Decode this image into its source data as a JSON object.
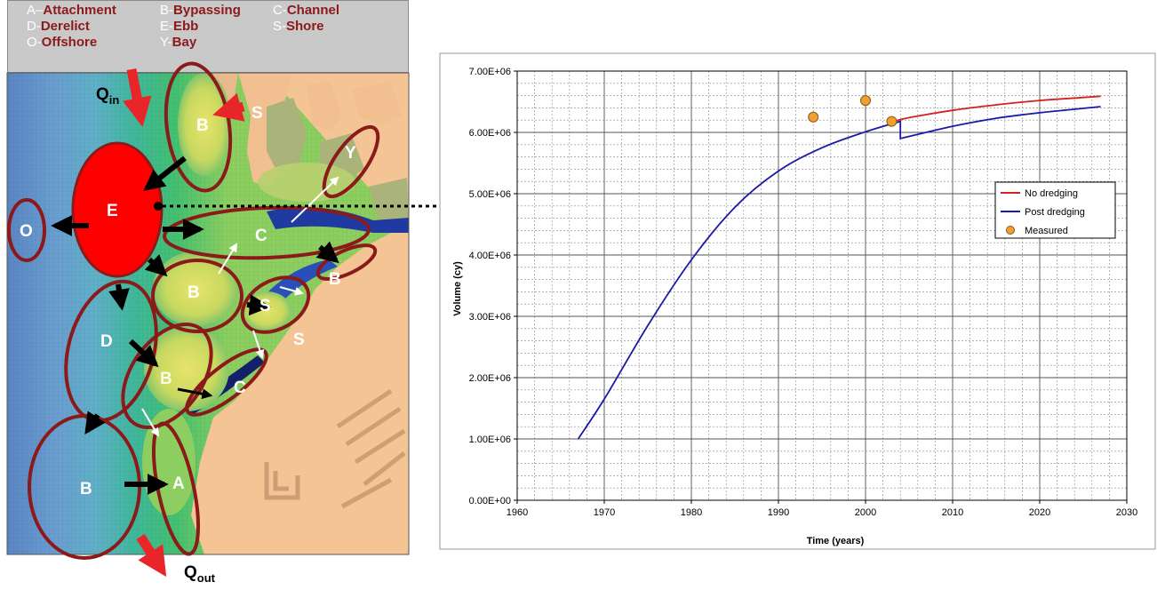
{
  "key_legend": [
    {
      "code": "A",
      "sep": "–",
      "label": "Attachment"
    },
    {
      "code": "B",
      "sep": "-",
      "label": "Bypassing"
    },
    {
      "code": "C",
      "sep": "-",
      "label": "Channel"
    },
    {
      "code": "D",
      "sep": "-",
      "label": "Derelict"
    },
    {
      "code": "E",
      "sep": "-",
      "label": "Ebb"
    },
    {
      "code": "S",
      "sep": "-",
      "label": "Shore"
    },
    {
      "code": "O",
      "sep": "-",
      "label": "Offshore"
    },
    {
      "code": "Y",
      "sep": "-",
      "label": "Bay"
    }
  ],
  "map": {
    "q_in": {
      "base": "Q",
      "sub": "in"
    },
    "q_out": {
      "base": "Q",
      "sub": "out"
    },
    "labels": {
      "b_top": "B",
      "s_top": "S",
      "y": "Y",
      "e": "E",
      "o": "O",
      "c_mid": "C",
      "b_right": "B",
      "b_mid": "B",
      "s_mid": "S",
      "s_right": "S",
      "d": "D",
      "b_lower": "B",
      "c_lower": "C",
      "b_bottom": "B",
      "a": "A"
    },
    "colors": {
      "ellipse": "#8b1a1a",
      "ebb_fill": "#ff0000",
      "arrow_red": "#e8262a"
    }
  },
  "chart_data": {
    "type": "line",
    "xlabel": "Time (years)",
    "ylabel": "Volume (cy)",
    "xlim": [
      1960,
      2030
    ],
    "ylim": [
      0,
      7000000
    ],
    "x_ticks": [
      1960,
      1970,
      1980,
      1990,
      2000,
      2010,
      2020,
      2030
    ],
    "y_ticks": [
      0,
      1000000,
      2000000,
      3000000,
      4000000,
      5000000,
      6000000,
      7000000
    ],
    "y_tick_labels": [
      "0.00E+00",
      "1.00E+06",
      "2.00E+06",
      "3.00E+06",
      "4.00E+06",
      "5.00E+06",
      "6.00E+06",
      "7.00E+06"
    ],
    "grid": true,
    "legend_position": "right",
    "series": [
      {
        "name": "No dredging",
        "color": "#d62020",
        "x": [
          2003,
          2005,
          2010,
          2015,
          2020,
          2025,
          2027
        ],
        "y": [
          6170000,
          6240000,
          6360000,
          6450000,
          6520000,
          6570000,
          6590000
        ]
      },
      {
        "name": "Post dredging",
        "color": "#1a1aa8",
        "x": [
          1967,
          1970,
          1975,
          1980,
          1985,
          1990,
          1995,
          2000,
          2004,
          2004,
          2010,
          2015,
          2020,
          2027
        ],
        "y": [
          1000000,
          1650000,
          2850000,
          3920000,
          4780000,
          5370000,
          5750000,
          6010000,
          6180000,
          5900000,
          6100000,
          6230000,
          6320000,
          6420000
        ]
      },
      {
        "name": "Measured",
        "color": "#f0a030",
        "marker": "circle",
        "x": [
          1994,
          2000,
          2003
        ],
        "y": [
          6250000,
          6520000,
          6180000
        ]
      }
    ]
  }
}
